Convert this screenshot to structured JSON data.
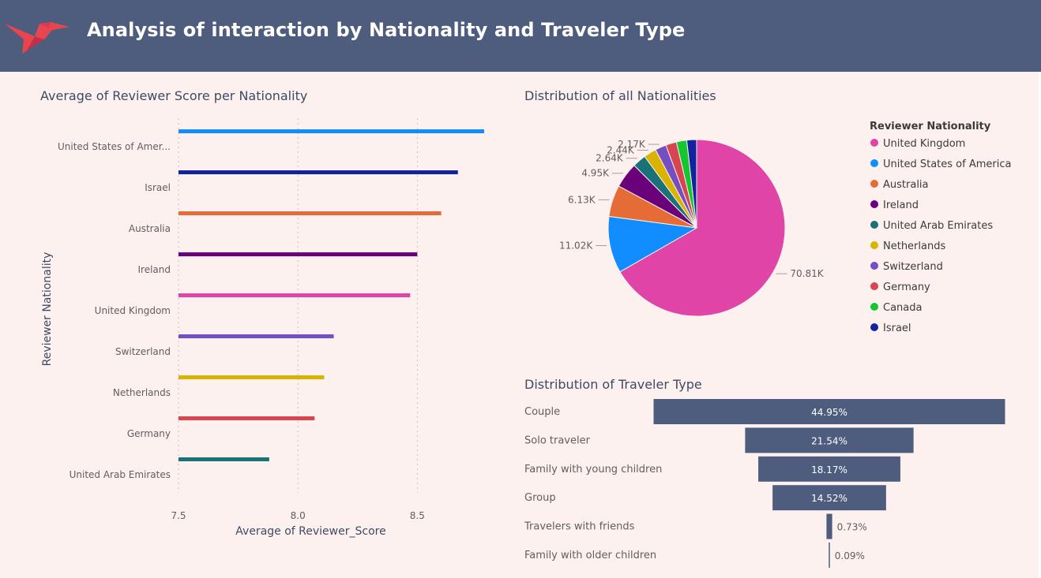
{
  "header": {
    "title": "Analysis of interaction by Nationality and Traveler Type"
  },
  "chart_data": [
    {
      "type": "bar",
      "orientation": "horizontal",
      "title": "Average of Reviewer Score per Nationality",
      "xlabel": "Average of Reviewer_Score",
      "ylabel": "Reviewer Nationality",
      "categories": [
        "United States of Amer...",
        "Israel",
        "Australia",
        "Ireland",
        "United Kingdom",
        "Switzerland",
        "Netherlands",
        "Germany",
        "United Arab Emirates"
      ],
      "values": [
        8.78,
        8.67,
        8.6,
        8.5,
        8.47,
        8.15,
        8.11,
        8.07,
        7.88
      ],
      "colors": [
        "#118dff",
        "#12239e",
        "#e66c37",
        "#6b007b",
        "#e044a7",
        "#744ec2",
        "#d9b300",
        "#d64550",
        "#197278"
      ],
      "xlim": [
        7.5,
        8.78
      ],
      "xticks": [
        "7.5",
        "8.0",
        "8.5"
      ],
      "grid": true
    },
    {
      "type": "pie",
      "title": "Distribution of all Nationalities",
      "legend_title": "Reviewer Nationality",
      "legend_position": "right",
      "slices": [
        {
          "name": "United Kingdom",
          "value": 70.81,
          "label": "70.81K",
          "color": "#e044a7"
        },
        {
          "name": "United States of America",
          "value": 11.02,
          "label": "11.02K",
          "color": "#118dff"
        },
        {
          "name": "Australia",
          "value": 6.13,
          "label": "6.13K",
          "color": "#e66c37"
        },
        {
          "name": "Ireland",
          "value": 4.95,
          "label": "4.95K",
          "color": "#6b007b"
        },
        {
          "name": "United Arab Emirates",
          "value": 2.64,
          "label": "2.64K",
          "color": "#197278"
        },
        {
          "name": "Netherlands",
          "value": 2.44,
          "label": "2.44K",
          "color": "#d9b300"
        },
        {
          "name": "Switzerland",
          "value": 2.17,
          "label": "2.17K",
          "color": "#744ec2"
        },
        {
          "name": "Germany",
          "value": 2.1,
          "label": "",
          "color": "#d64550"
        },
        {
          "name": "Canada",
          "value": 2.0,
          "label": "",
          "color": "#15c630"
        },
        {
          "name": "Israel",
          "value": 1.9,
          "label": "",
          "color": "#12239e"
        }
      ]
    },
    {
      "type": "bar",
      "subtype": "funnel",
      "title": "Distribution of Traveler Type",
      "categories": [
        "Couple",
        "Solo traveler",
        "Family with young children",
        "Group",
        "Travelers with friends",
        "Family with older children"
      ],
      "values": [
        44.95,
        21.54,
        18.17,
        14.52,
        0.73,
        0.09
      ],
      "labels": [
        "44.95%",
        "21.54%",
        "18.17%",
        "14.52%",
        "0.73%",
        "0.09%"
      ],
      "color": "#4e5d7e"
    }
  ]
}
